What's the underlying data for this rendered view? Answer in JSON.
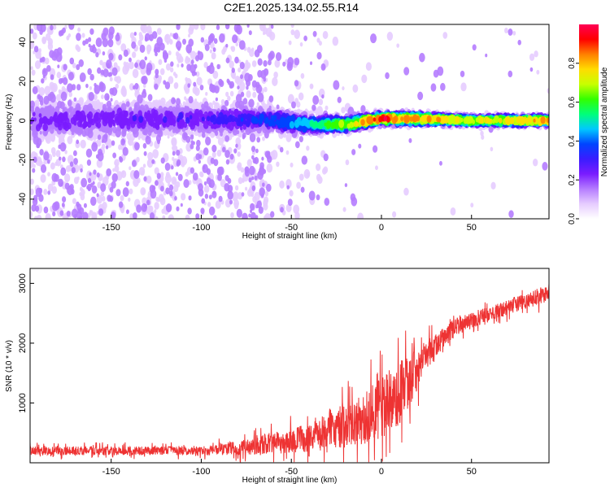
{
  "figure": {
    "title": "C2E1.2025.134.02.55.R14"
  },
  "chart_data": [
    {
      "type": "heatmap",
      "xlabel": "Height of straight line (km)",
      "ylabel": "Frequency (Hz)",
      "xlim": [
        -195,
        93
      ],
      "ylim": [
        -50,
        49
      ],
      "xticks": [
        -150,
        -100,
        -50,
        0,
        50
      ],
      "yticks": [
        -40,
        -20,
        0,
        20,
        40
      ],
      "colorbar": {
        "label": "Normalized spectral amplitude",
        "range": [
          0.0,
          1.0
        ],
        "ticks": [
          0.0,
          0.2,
          0.4,
          0.6,
          0.8
        ],
        "tick_labels": [
          "0.0",
          "0.2",
          "0.4",
          "0.6",
          "0.8"
        ],
        "colors": [
          "#ffffff",
          "#e6ccff",
          "#b57cff",
          "#7a1cff",
          "#3a1cff",
          "#0044ff",
          "#00c8ff",
          "#00ff7a",
          "#33ff00",
          "#c8ff00",
          "#ffdc00",
          "#ff8000",
          "#ff0000",
          "#ff0055"
        ]
      },
      "band": {
        "description_points_km": [
          -195,
          -100,
          -60,
          -40,
          -20,
          0,
          20,
          50,
          93
        ],
        "center_hz": [
          0,
          1,
          0,
          -2,
          -2,
          1,
          1,
          0,
          0
        ],
        "halfwidth_hz": [
          8,
          7,
          5,
          4,
          3,
          2.5,
          2.5,
          2,
          2
        ],
        "peak_amplitude": [
          0.22,
          0.25,
          0.35,
          0.45,
          0.65,
          0.85,
          0.75,
          0.65,
          0.75
        ]
      },
      "grid": false
    },
    {
      "type": "line",
      "xlabel": "Height of straight line (km)",
      "ylabel": "SNR (10 * v/v)",
      "xlim": [
        -195,
        93
      ],
      "ylim": [
        0,
        3250
      ],
      "xticks": [
        -150,
        -100,
        -50,
        0,
        50
      ],
      "yticks": [
        1000,
        2000,
        3000
      ],
      "series": [
        {
          "color": "#ee3333",
          "trend_x_km": [
            -195,
            -100,
            -80,
            -60,
            -40,
            -20,
            -5,
            10,
            25,
            40,
            60,
            80,
            93
          ],
          "trend_y": [
            200,
            200,
            250,
            330,
            420,
            620,
            820,
            1150,
            1800,
            2250,
            2500,
            2700,
            2850
          ],
          "noise_y": [
            120,
            120,
            200,
            300,
            400,
            600,
            800,
            950,
            400,
            250,
            200,
            220,
            250
          ]
        }
      ],
      "grid": false
    }
  ]
}
